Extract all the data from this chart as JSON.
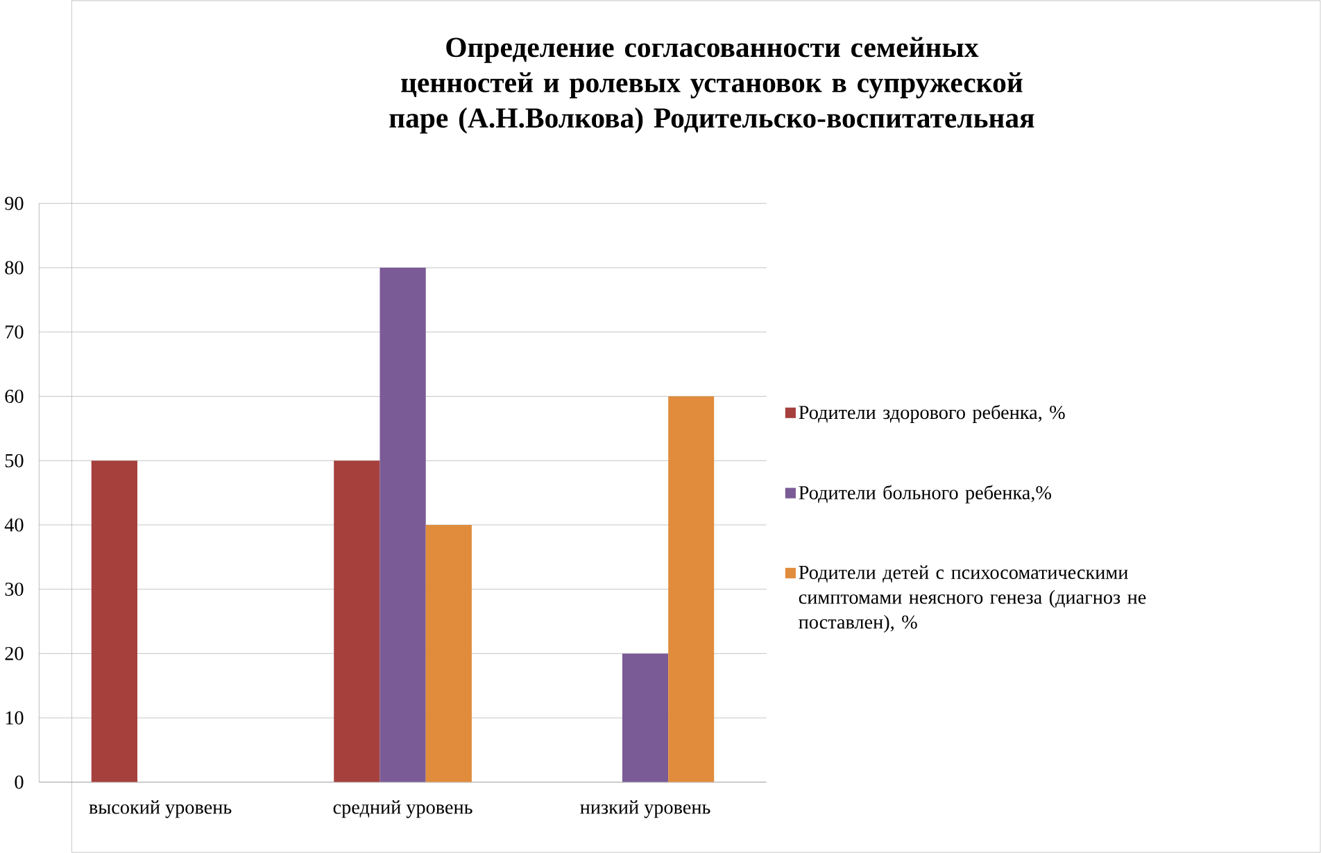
{
  "chart_data": {
    "type": "bar",
    "title": "Определение согласованности семейных ценностей и ролевых установок в супружеской паре (А.Н.Волкова) Родительско-воспитательная",
    "categories": [
      "высокий уровень",
      "средний уровень",
      "низкий уровень"
    ],
    "series": [
      {
        "name": "Родители здорового ребенка, %",
        "color": "#a5403d",
        "values": [
          50,
          50,
          0
        ]
      },
      {
        "name": "Родители больного ребенка,%",
        "color": "#7a5b96",
        "values": [
          0,
          80,
          20
        ]
      },
      {
        "name": "Родители детей с психосоматическими симптомами неясного генеза (диагноз не поставлен), %",
        "color": "#e08c3c",
        "values": [
          0,
          40,
          60
        ]
      }
    ],
    "ylim": [
      0,
      90
    ],
    "yticks": [
      0,
      10,
      20,
      30,
      40,
      50,
      60,
      70,
      80,
      90
    ],
    "grid": "y",
    "legend": "right"
  }
}
